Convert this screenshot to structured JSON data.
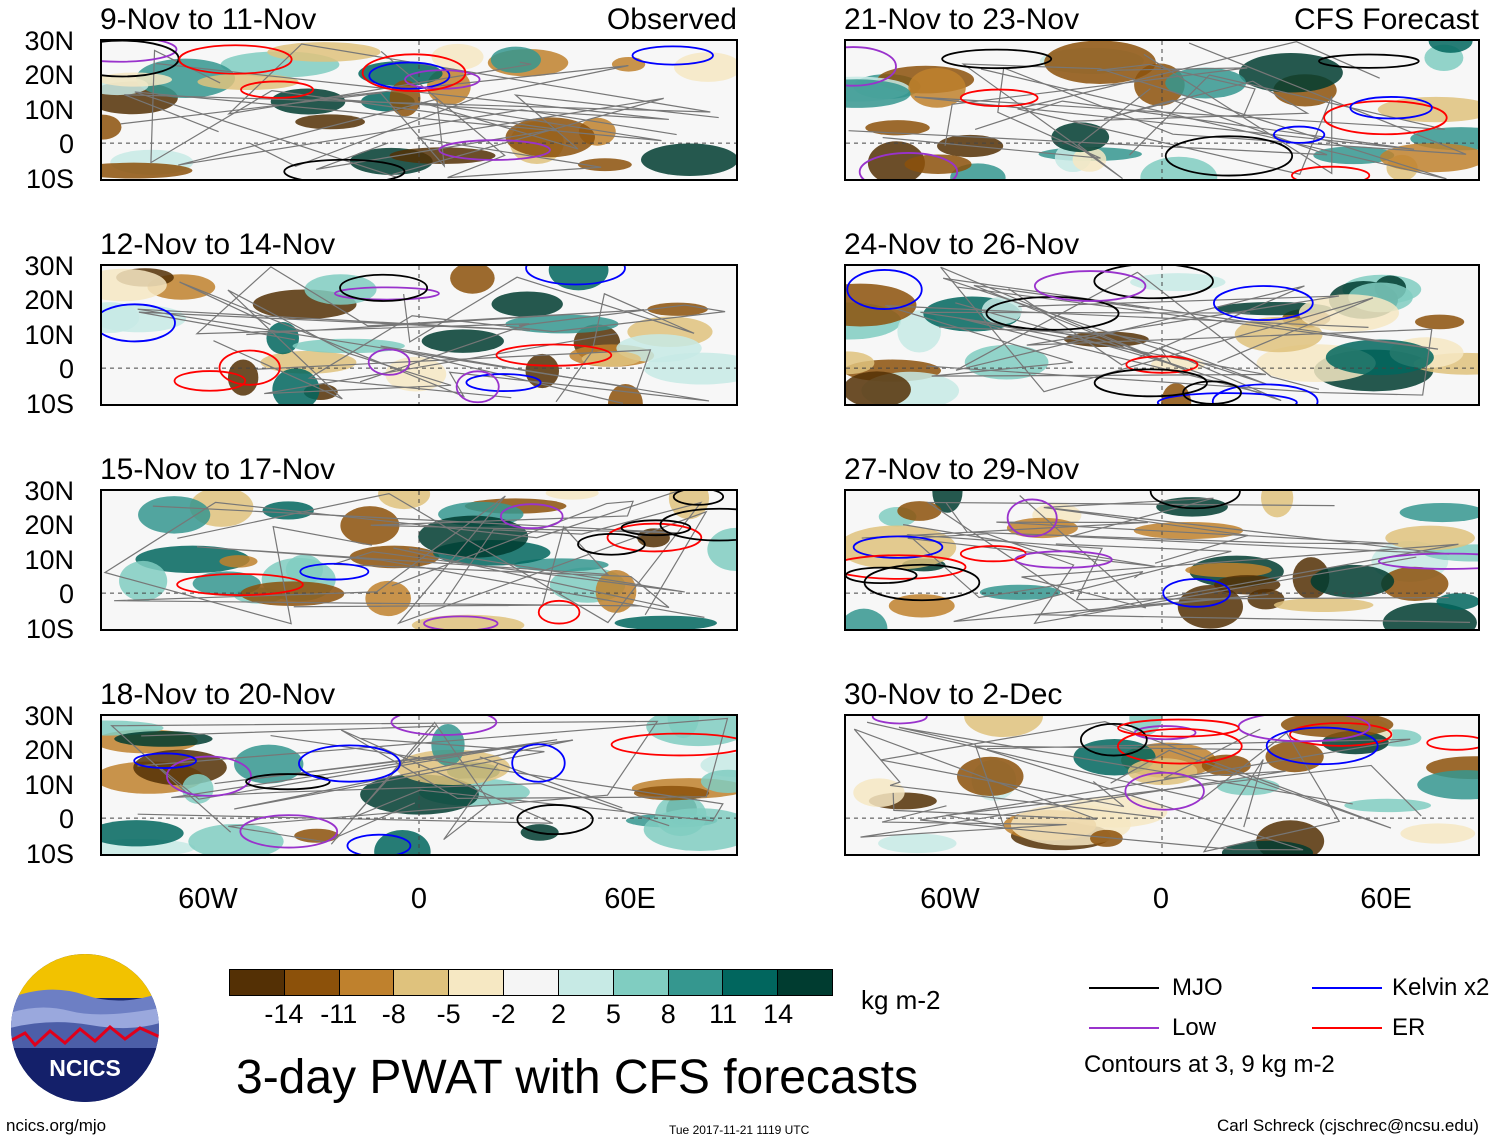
{
  "panels": [
    {
      "title": "9-Nov to 11-Nov",
      "tag": "Observed"
    },
    {
      "title": "21-Nov to 23-Nov",
      "tag": "CFS Forecast"
    },
    {
      "title": "12-Nov to 14-Nov",
      "tag": ""
    },
    {
      "title": "24-Nov to 26-Nov",
      "tag": ""
    },
    {
      "title": "15-Nov to 17-Nov",
      "tag": ""
    },
    {
      "title": "27-Nov to 29-Nov",
      "tag": ""
    },
    {
      "title": "18-Nov to 20-Nov",
      "tag": ""
    },
    {
      "title": "30-Nov to 2-Dec",
      "tag": ""
    }
  ],
  "lat_labels": [
    "30N",
    "20N",
    "10N",
    "0",
    "10S"
  ],
  "lon_labels": [
    "60W",
    "0",
    "60E"
  ],
  "colorbar": {
    "colors": [
      "#543005",
      "#8c510a",
      "#bf812d",
      "#dfc27d",
      "#f6e8c3",
      "#f5f5f5",
      "#c7eae5",
      "#80cdc1",
      "#35978f",
      "#01665e",
      "#003c30"
    ],
    "ticks": [
      "-14",
      "-11",
      "-8",
      "-5",
      "-2",
      "2",
      "5",
      "8",
      "11",
      "14"
    ],
    "units": "kg m-2"
  },
  "title": "3-day PWAT with CFS forecasts",
  "legend": {
    "items": [
      {
        "label": "MJO",
        "color": "#000000"
      },
      {
        "label": "Kelvin x2",
        "color": "#0000ff"
      },
      {
        "label": "Low",
        "color": "#9932cc"
      },
      {
        "label": "ER",
        "color": "#ff0000"
      }
    ],
    "note": "Contours at 3, 9 kg m-2"
  },
  "logo_text": "NCICS",
  "footer": {
    "left": "ncics.org/mjo",
    "center": "Tue 2017-11-21 1119 UTC",
    "right": "Carl Schreck (cjschrec@ncsu.edu)"
  }
}
